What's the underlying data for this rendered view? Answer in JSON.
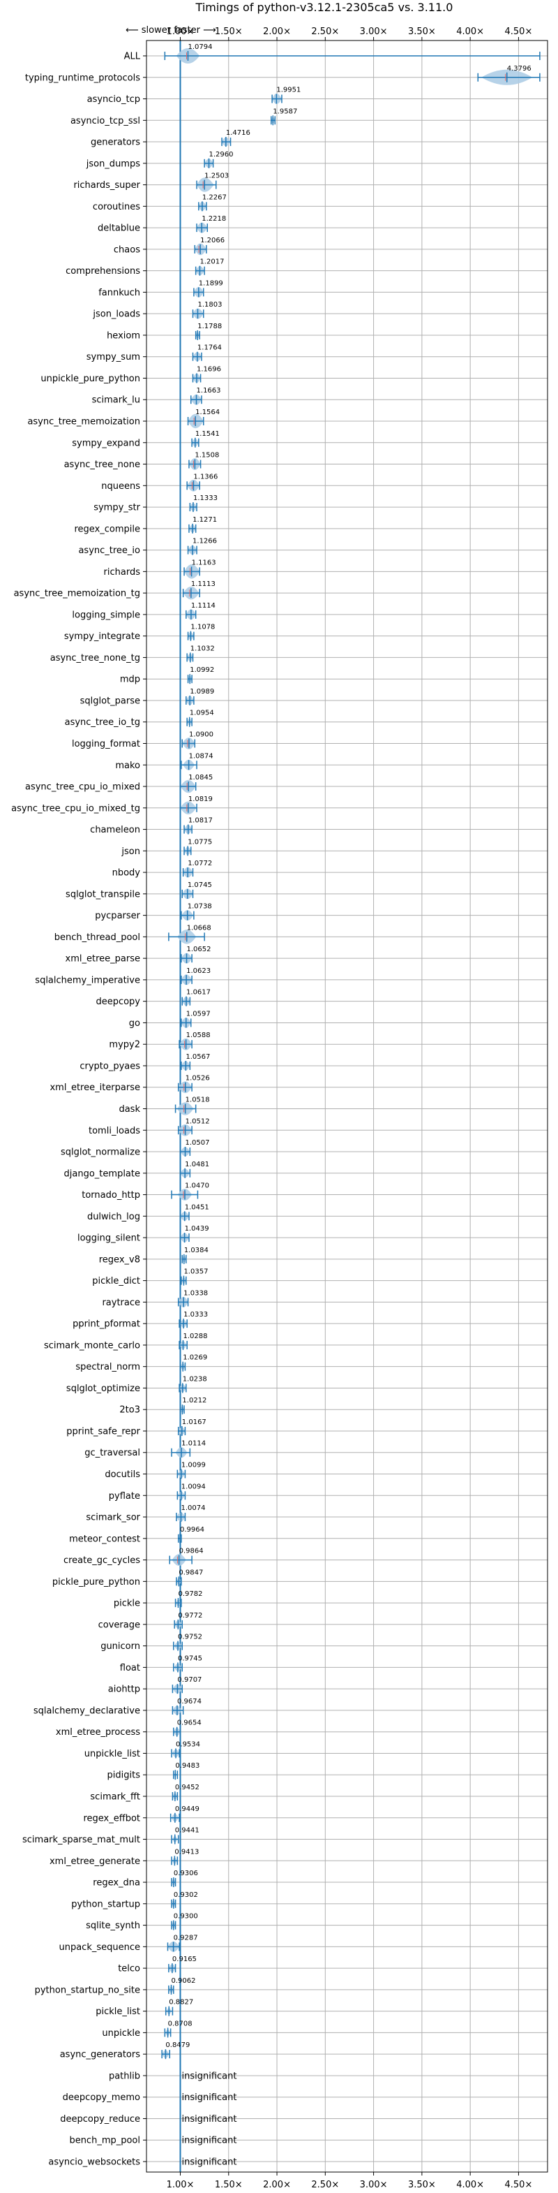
{
  "chart_data": {
    "type": "violin",
    "title": "Timings of python-v3.12.1-2305ca5 vs. 3.11.0",
    "annotation": "⟵ slower   faster ⟶",
    "xticks": [
      1.0,
      1.5,
      2.0,
      2.5,
      3.0,
      3.5,
      4.0,
      4.5
    ],
    "xtick_labels": [
      "1.00×",
      "1.50×",
      "2.00×",
      "2.50×",
      "3.00×",
      "3.50×",
      "4.00×",
      "4.50×"
    ],
    "xlim": [
      0.65,
      4.8
    ],
    "reference_line": 1.0,
    "grid": true,
    "colors": {
      "violin": "#aecde6",
      "line": "#1f77b4",
      "median": "#e06666",
      "grid": "#b0b0b0"
    },
    "benchmarks": [
      {
        "name": "ALL",
        "value": 1.0794,
        "min": 0.84,
        "max": 4.72,
        "spread": 0.1,
        "label": "1.0794"
      },
      {
        "name": "typing_runtime_protocols",
        "value": 4.3796,
        "min": 4.08,
        "max": 4.72,
        "spread": 0.22,
        "label": "4.3796"
      },
      {
        "name": "asyncio_tcp",
        "value": 1.9951,
        "min": 1.95,
        "max": 2.05,
        "spread": 0.05,
        "label": "1.9951"
      },
      {
        "name": "asyncio_tcp_ssl",
        "value": 1.9587,
        "min": 1.94,
        "max": 1.98,
        "spread": 0.02,
        "label": "1.9587"
      },
      {
        "name": "generators",
        "value": 1.4716,
        "min": 1.43,
        "max": 1.52,
        "spread": 0.04,
        "label": "1.4716"
      },
      {
        "name": "json_dumps",
        "value": 1.296,
        "min": 1.25,
        "max": 1.34,
        "spread": 0.04,
        "label": "1.2960"
      },
      {
        "name": "richards_super",
        "value": 1.2503,
        "min": 1.17,
        "max": 1.37,
        "spread": 0.08,
        "label": "1.2503"
      },
      {
        "name": "coroutines",
        "value": 1.2267,
        "min": 1.19,
        "max": 1.27,
        "spread": 0.04,
        "label": "1.2267"
      },
      {
        "name": "deltablue",
        "value": 1.2218,
        "min": 1.17,
        "max": 1.28,
        "spread": 0.05,
        "label": "1.2218"
      },
      {
        "name": "chaos",
        "value": 1.2066,
        "min": 1.15,
        "max": 1.27,
        "spread": 0.06,
        "label": "1.2066"
      },
      {
        "name": "comprehensions",
        "value": 1.2017,
        "min": 1.16,
        "max": 1.25,
        "spread": 0.04,
        "label": "1.2017"
      },
      {
        "name": "fannkuch",
        "value": 1.1899,
        "min": 1.14,
        "max": 1.24,
        "spread": 0.05,
        "label": "1.1899"
      },
      {
        "name": "json_loads",
        "value": 1.1803,
        "min": 1.13,
        "max": 1.24,
        "spread": 0.05,
        "label": "1.1803"
      },
      {
        "name": "hexiom",
        "value": 1.1788,
        "min": 1.16,
        "max": 1.2,
        "spread": 0.02,
        "label": "1.1788"
      },
      {
        "name": "sympy_sum",
        "value": 1.1764,
        "min": 1.13,
        "max": 1.22,
        "spread": 0.04,
        "label": "1.1764"
      },
      {
        "name": "unpickle_pure_python",
        "value": 1.1696,
        "min": 1.13,
        "max": 1.21,
        "spread": 0.04,
        "label": "1.1696"
      },
      {
        "name": "scimark_lu",
        "value": 1.1663,
        "min": 1.11,
        "max": 1.22,
        "spread": 0.05,
        "label": "1.1663"
      },
      {
        "name": "async_tree_memoization",
        "value": 1.1564,
        "min": 1.08,
        "max": 1.24,
        "spread": 0.08,
        "label": "1.1564"
      },
      {
        "name": "sympy_expand",
        "value": 1.1541,
        "min": 1.12,
        "max": 1.19,
        "spread": 0.03,
        "label": "1.1541"
      },
      {
        "name": "async_tree_none",
        "value": 1.1508,
        "min": 1.09,
        "max": 1.21,
        "spread": 0.06,
        "label": "1.1508"
      },
      {
        "name": "nqueens",
        "value": 1.1366,
        "min": 1.07,
        "max": 1.2,
        "spread": 0.06,
        "label": "1.1366"
      },
      {
        "name": "sympy_str",
        "value": 1.1333,
        "min": 1.1,
        "max": 1.17,
        "spread": 0.03,
        "label": "1.1333"
      },
      {
        "name": "regex_compile",
        "value": 1.1271,
        "min": 1.09,
        "max": 1.16,
        "spread": 0.03,
        "label": "1.1271"
      },
      {
        "name": "async_tree_io",
        "value": 1.1266,
        "min": 1.08,
        "max": 1.17,
        "spread": 0.04,
        "label": "1.1266"
      },
      {
        "name": "richards",
        "value": 1.1163,
        "min": 1.04,
        "max": 1.2,
        "spread": 0.08,
        "label": "1.1163"
      },
      {
        "name": "async_tree_memoization_tg",
        "value": 1.1113,
        "min": 1.03,
        "max": 1.2,
        "spread": 0.07,
        "label": "1.1113"
      },
      {
        "name": "logging_simple",
        "value": 1.1114,
        "min": 1.06,
        "max": 1.16,
        "spread": 0.05,
        "label": "1.1114"
      },
      {
        "name": "sympy_integrate",
        "value": 1.1078,
        "min": 1.08,
        "max": 1.14,
        "spread": 0.03,
        "label": "1.1078"
      },
      {
        "name": "async_tree_none_tg",
        "value": 1.1032,
        "min": 1.07,
        "max": 1.13,
        "spread": 0.03,
        "label": "1.1032"
      },
      {
        "name": "mdp",
        "value": 1.0992,
        "min": 1.08,
        "max": 1.12,
        "spread": 0.02,
        "label": "1.0992"
      },
      {
        "name": "sqlglot_parse",
        "value": 1.0989,
        "min": 1.06,
        "max": 1.14,
        "spread": 0.04,
        "label": "1.0989"
      },
      {
        "name": "async_tree_io_tg",
        "value": 1.0954,
        "min": 1.07,
        "max": 1.12,
        "spread": 0.02,
        "label": "1.0954"
      },
      {
        "name": "logging_format",
        "value": 1.09,
        "min": 1.02,
        "max": 1.15,
        "spread": 0.06,
        "label": "1.0900"
      },
      {
        "name": "mako",
        "value": 1.0874,
        "min": 1.01,
        "max": 1.17,
        "spread": 0.05,
        "label": "1.0874"
      },
      {
        "name": "async_tree_cpu_io_mixed",
        "value": 1.0845,
        "min": 1.0,
        "max": 1.16,
        "spread": 0.07,
        "label": "1.0845"
      },
      {
        "name": "async_tree_cpu_io_mixed_tg",
        "value": 1.0819,
        "min": 1.0,
        "max": 1.17,
        "spread": 0.07,
        "label": "1.0819"
      },
      {
        "name": "chameleon",
        "value": 1.0817,
        "min": 1.04,
        "max": 1.12,
        "spread": 0.04,
        "label": "1.0817"
      },
      {
        "name": "json",
        "value": 1.0775,
        "min": 1.04,
        "max": 1.11,
        "spread": 0.03,
        "label": "1.0775"
      },
      {
        "name": "nbody",
        "value": 1.0772,
        "min": 1.03,
        "max": 1.13,
        "spread": 0.05,
        "label": "1.0772"
      },
      {
        "name": "sqlglot_transpile",
        "value": 1.0745,
        "min": 1.02,
        "max": 1.13,
        "spread": 0.05,
        "label": "1.0745"
      },
      {
        "name": "pycparser",
        "value": 1.0738,
        "min": 1.01,
        "max": 1.14,
        "spread": 0.05,
        "label": "1.0738"
      },
      {
        "name": "bench_thread_pool",
        "value": 1.0668,
        "min": 0.88,
        "max": 1.25,
        "spread": 0.08,
        "label": "1.0668"
      },
      {
        "name": "xml_etree_parse",
        "value": 1.0652,
        "min": 1.01,
        "max": 1.12,
        "spread": 0.05,
        "label": "1.0652"
      },
      {
        "name": "sqlalchemy_imperative",
        "value": 1.0623,
        "min": 1.01,
        "max": 1.12,
        "spread": 0.05,
        "label": "1.0623"
      },
      {
        "name": "deepcopy",
        "value": 1.0617,
        "min": 1.02,
        "max": 1.1,
        "spread": 0.04,
        "label": "1.0617"
      },
      {
        "name": "go",
        "value": 1.0597,
        "min": 1.01,
        "max": 1.11,
        "spread": 0.05,
        "label": "1.0597"
      },
      {
        "name": "mypy2",
        "value": 1.0588,
        "min": 0.99,
        "max": 1.12,
        "spread": 0.06,
        "label": "1.0588"
      },
      {
        "name": "crypto_pyaes",
        "value": 1.0567,
        "min": 1.01,
        "max": 1.1,
        "spread": 0.04,
        "label": "1.0567"
      },
      {
        "name": "xml_etree_iterparse",
        "value": 1.0526,
        "min": 0.98,
        "max": 1.12,
        "spread": 0.06,
        "label": "1.0526"
      },
      {
        "name": "dask",
        "value": 1.0518,
        "min": 0.95,
        "max": 1.16,
        "spread": 0.07,
        "label": "1.0518"
      },
      {
        "name": "tomli_loads",
        "value": 1.0512,
        "min": 0.98,
        "max": 1.12,
        "spread": 0.06,
        "label": "1.0512"
      },
      {
        "name": "sqlglot_normalize",
        "value": 1.0507,
        "min": 1.0,
        "max": 1.1,
        "spread": 0.04,
        "label": "1.0507"
      },
      {
        "name": "django_template",
        "value": 1.0481,
        "min": 1.0,
        "max": 1.1,
        "spread": 0.04,
        "label": "1.0481"
      },
      {
        "name": "tornado_http",
        "value": 1.047,
        "min": 0.91,
        "max": 1.18,
        "spread": 0.06,
        "label": "1.0470"
      },
      {
        "name": "dulwich_log",
        "value": 1.0451,
        "min": 1.0,
        "max": 1.09,
        "spread": 0.04,
        "label": "1.0451"
      },
      {
        "name": "logging_silent",
        "value": 1.0439,
        "min": 1.0,
        "max": 1.09,
        "spread": 0.04,
        "label": "1.0439"
      },
      {
        "name": "regex_v8",
        "value": 1.0384,
        "min": 1.02,
        "max": 1.06,
        "spread": 0.02,
        "label": "1.0384"
      },
      {
        "name": "pickle_dict",
        "value": 1.0357,
        "min": 1.01,
        "max": 1.06,
        "spread": 0.02,
        "label": "1.0357"
      },
      {
        "name": "raytrace",
        "value": 1.0338,
        "min": 0.98,
        "max": 1.08,
        "spread": 0.05,
        "label": "1.0338"
      },
      {
        "name": "pprint_pformat",
        "value": 1.0333,
        "min": 0.99,
        "max": 1.07,
        "spread": 0.03,
        "label": "1.0333"
      },
      {
        "name": "scimark_monte_carlo",
        "value": 1.0288,
        "min": 0.99,
        "max": 1.07,
        "spread": 0.03,
        "label": "1.0288"
      },
      {
        "name": "spectral_norm",
        "value": 1.0269,
        "min": 1.0,
        "max": 1.05,
        "spread": 0.02,
        "label": "1.0269"
      },
      {
        "name": "sqlglot_optimize",
        "value": 1.0238,
        "min": 0.99,
        "max": 1.06,
        "spread": 0.03,
        "label": "1.0238"
      },
      {
        "name": "2to3",
        "value": 1.0212,
        "min": 1.0,
        "max": 1.04,
        "spread": 0.02,
        "label": "1.0212"
      },
      {
        "name": "pprint_safe_repr",
        "value": 1.0167,
        "min": 0.98,
        "max": 1.05,
        "spread": 0.03,
        "label": "1.0167"
      },
      {
        "name": "gc_traversal",
        "value": 1.0114,
        "min": 0.91,
        "max": 1.1,
        "spread": 0.05,
        "label": "1.0114"
      },
      {
        "name": "docutils",
        "value": 1.0099,
        "min": 0.97,
        "max": 1.05,
        "spread": 0.03,
        "label": "1.0099"
      },
      {
        "name": "pyflate",
        "value": 1.0094,
        "min": 0.97,
        "max": 1.05,
        "spread": 0.03,
        "label": "1.0094"
      },
      {
        "name": "scimark_sor",
        "value": 1.0074,
        "min": 0.96,
        "max": 1.05,
        "spread": 0.04,
        "label": "1.0074"
      },
      {
        "name": "meteor_contest",
        "value": 0.9964,
        "min": 0.98,
        "max": 1.01,
        "spread": 0.01,
        "label": "0.9964"
      },
      {
        "name": "create_gc_cycles",
        "value": 0.9864,
        "min": 0.89,
        "max": 1.12,
        "spread": 0.06,
        "label": "0.9864"
      },
      {
        "name": "pickle_pure_python",
        "value": 0.9847,
        "min": 0.96,
        "max": 1.01,
        "spread": 0.02,
        "label": "0.9847"
      },
      {
        "name": "pickle",
        "value": 0.9782,
        "min": 0.95,
        "max": 1.01,
        "spread": 0.02,
        "label": "0.9782"
      },
      {
        "name": "coverage",
        "value": 0.9772,
        "min": 0.94,
        "max": 1.02,
        "spread": 0.03,
        "label": "0.9772"
      },
      {
        "name": "gunicorn",
        "value": 0.9752,
        "min": 0.93,
        "max": 1.02,
        "spread": 0.03,
        "label": "0.9752"
      },
      {
        "name": "float",
        "value": 0.9745,
        "min": 0.93,
        "max": 1.02,
        "spread": 0.03,
        "label": "0.9745"
      },
      {
        "name": "aiohttp",
        "value": 0.9707,
        "min": 0.92,
        "max": 1.02,
        "spread": 0.04,
        "label": "0.9707"
      },
      {
        "name": "sqlalchemy_declarative",
        "value": 0.9674,
        "min": 0.92,
        "max": 1.03,
        "spread": 0.04,
        "label": "0.9674"
      },
      {
        "name": "xml_etree_process",
        "value": 0.9654,
        "min": 0.93,
        "max": 1.0,
        "spread": 0.03,
        "label": "0.9654"
      },
      {
        "name": "unpickle_list",
        "value": 0.9534,
        "min": 0.91,
        "max": 0.99,
        "spread": 0.03,
        "label": "0.9534"
      },
      {
        "name": "pidigits",
        "value": 0.9483,
        "min": 0.93,
        "max": 0.97,
        "spread": 0.01,
        "label": "0.9483"
      },
      {
        "name": "scimark_fft",
        "value": 0.9452,
        "min": 0.92,
        "max": 0.97,
        "spread": 0.02,
        "label": "0.9452"
      },
      {
        "name": "regex_effbot",
        "value": 0.9449,
        "min": 0.9,
        "max": 0.99,
        "spread": 0.03,
        "label": "0.9449"
      },
      {
        "name": "scimark_sparse_mat_mult",
        "value": 0.9441,
        "min": 0.91,
        "max": 0.98,
        "spread": 0.02,
        "label": "0.9441"
      },
      {
        "name": "xml_etree_generate",
        "value": 0.9413,
        "min": 0.91,
        "max": 0.97,
        "spread": 0.02,
        "label": "0.9413"
      },
      {
        "name": "regex_dna",
        "value": 0.9306,
        "min": 0.91,
        "max": 0.95,
        "spread": 0.02,
        "label": "0.9306"
      },
      {
        "name": "python_startup",
        "value": 0.9302,
        "min": 0.91,
        "max": 0.95,
        "spread": 0.02,
        "label": "0.9302"
      },
      {
        "name": "sqlite_synth",
        "value": 0.93,
        "min": 0.91,
        "max": 0.95,
        "spread": 0.02,
        "label": "0.9300"
      },
      {
        "name": "unpack_sequence",
        "value": 0.9287,
        "min": 0.87,
        "max": 0.99,
        "spread": 0.05,
        "label": "0.9287"
      },
      {
        "name": "telco",
        "value": 0.9165,
        "min": 0.88,
        "max": 0.95,
        "spread": 0.03,
        "label": "0.9165"
      },
      {
        "name": "python_startup_no_site",
        "value": 0.9062,
        "min": 0.88,
        "max": 0.93,
        "spread": 0.02,
        "label": "0.9062"
      },
      {
        "name": "pickle_list",
        "value": 0.8827,
        "min": 0.85,
        "max": 0.92,
        "spread": 0.02,
        "label": "0.8827"
      },
      {
        "name": "unpickle",
        "value": 0.8708,
        "min": 0.84,
        "max": 0.9,
        "spread": 0.02,
        "label": "0.8708"
      },
      {
        "name": "async_generators",
        "value": 0.8479,
        "min": 0.81,
        "max": 0.89,
        "spread": 0.03,
        "label": "0.8479"
      },
      {
        "name": "pathlib",
        "value": null,
        "insignificant": true,
        "label": "insignificant"
      },
      {
        "name": "deepcopy_memo",
        "value": null,
        "insignificant": true,
        "label": "insignificant"
      },
      {
        "name": "deepcopy_reduce",
        "value": null,
        "insignificant": true,
        "label": "insignificant"
      },
      {
        "name": "bench_mp_pool",
        "value": null,
        "insignificant": true,
        "label": "insignificant"
      },
      {
        "name": "asyncio_websockets",
        "value": null,
        "insignificant": true,
        "label": "insignificant"
      }
    ]
  }
}
